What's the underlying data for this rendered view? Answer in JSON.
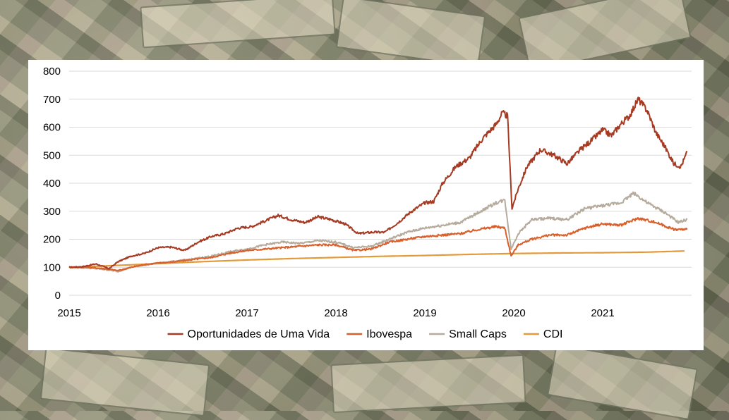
{
  "chart_data": {
    "type": "line",
    "title": "",
    "xlabel": "",
    "ylabel": "",
    "ylim": [
      0,
      800
    ],
    "yticks": [
      0,
      100,
      200,
      300,
      400,
      500,
      600,
      700,
      800
    ],
    "xlim": [
      2015,
      2022
    ],
    "xticks": [
      "2015",
      "2016",
      "2017",
      "2018",
      "2019",
      "2020",
      "2021"
    ],
    "grid": "horizontal",
    "legend_position": "bottom",
    "series": [
      {
        "name": "Oportunidades de Uma Vida",
        "color": "#a63a22",
        "x": [
          2015.0,
          2015.15,
          2015.3,
          2015.45,
          2015.55,
          2015.7,
          2015.85,
          2016.0,
          2016.15,
          2016.3,
          2016.45,
          2016.6,
          2016.75,
          2016.9,
          2017.05,
          2017.2,
          2017.35,
          2017.5,
          2017.65,
          2017.8,
          2017.95,
          2018.1,
          2018.25,
          2018.4,
          2018.55,
          2018.7,
          2018.85,
          2019.0,
          2019.1,
          2019.2,
          2019.35,
          2019.5,
          2019.65,
          2019.8,
          2019.87,
          2019.93,
          2019.98,
          2020.05,
          2020.15,
          2020.3,
          2020.45,
          2020.6,
          2020.75,
          2020.9,
          2021.0,
          2021.1,
          2021.2,
          2021.3,
          2021.4,
          2021.5,
          2021.6,
          2021.7,
          2021.8,
          2021.88,
          2021.95
        ],
        "y": [
          100,
          102,
          112,
          95,
          120,
          140,
          150,
          170,
          172,
          160,
          190,
          210,
          220,
          240,
          245,
          265,
          285,
          270,
          260,
          280,
          270,
          255,
          220,
          225,
          225,
          260,
          300,
          330,
          335,
          400,
          460,
          490,
          560,
          610,
          650,
          640,
          310,
          380,
          460,
          520,
          500,
          470,
          520,
          560,
          590,
          570,
          610,
          640,
          700,
          660,
          580,
          530,
          470,
          460,
          510
        ]
      },
      {
        "name": "Ibovespa",
        "color": "#d95f2b",
        "x": [
          2015.0,
          2015.2,
          2015.4,
          2015.55,
          2015.7,
          2015.85,
          2016.0,
          2016.2,
          2016.4,
          2016.6,
          2016.8,
          2017.0,
          2017.2,
          2017.4,
          2017.6,
          2017.8,
          2018.0,
          2018.2,
          2018.4,
          2018.6,
          2018.8,
          2019.0,
          2019.2,
          2019.4,
          2019.6,
          2019.8,
          2019.9,
          2019.97,
          2020.05,
          2020.2,
          2020.4,
          2020.6,
          2020.8,
          2021.0,
          2021.2,
          2021.4,
          2021.6,
          2021.8,
          2021.95
        ],
        "y": [
          100,
          100,
          95,
          88,
          100,
          110,
          115,
          120,
          128,
          135,
          150,
          160,
          165,
          170,
          175,
          180,
          180,
          160,
          165,
          190,
          200,
          210,
          215,
          220,
          235,
          245,
          240,
          140,
          180,
          200,
          215,
          215,
          240,
          255,
          250,
          275,
          260,
          235,
          235
        ]
      },
      {
        "name": "Small Caps",
        "color": "#b5aa9b",
        "x": [
          2015.0,
          2015.2,
          2015.4,
          2015.55,
          2015.7,
          2015.85,
          2016.0,
          2016.2,
          2016.4,
          2016.6,
          2016.8,
          2017.0,
          2017.2,
          2017.4,
          2017.6,
          2017.8,
          2018.0,
          2018.2,
          2018.4,
          2018.6,
          2018.8,
          2019.0,
          2019.2,
          2019.4,
          2019.6,
          2019.8,
          2019.9,
          2019.97,
          2020.05,
          2020.2,
          2020.4,
          2020.6,
          2020.8,
          2021.0,
          2021.2,
          2021.35,
          2021.5,
          2021.7,
          2021.85,
          2021.95
        ],
        "y": [
          100,
          98,
          92,
          85,
          100,
          108,
          115,
          122,
          130,
          140,
          155,
          165,
          180,
          190,
          185,
          195,
          190,
          170,
          175,
          200,
          225,
          240,
          250,
          260,
          295,
          330,
          340,
          165,
          220,
          270,
          275,
          270,
          310,
          320,
          330,
          365,
          330,
          295,
          260,
          270
        ]
      },
      {
        "name": "CDI",
        "color": "#e29a3a",
        "x": [
          2015.0,
          2015.5,
          2016.0,
          2016.5,
          2017.0,
          2017.5,
          2018.0,
          2018.5,
          2019.0,
          2019.5,
          2020.0,
          2020.5,
          2021.0,
          2021.5,
          2021.92
        ],
        "y": [
          100,
          106,
          113,
          120,
          126,
          131,
          135,
          139,
          142,
          146,
          149,
          151,
          152,
          154,
          158
        ]
      }
    ]
  }
}
